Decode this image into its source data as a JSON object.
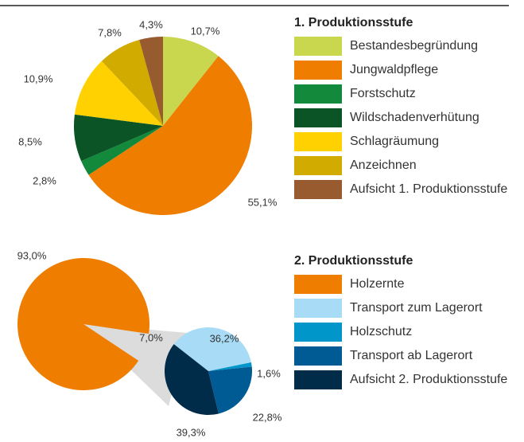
{
  "chart_data": [
    {
      "type": "pie",
      "title": "1. Produktionsstufe",
      "categories": [
        "Bestandesbegründung",
        "Jungwaldpflege",
        "Forstschutz",
        "Wildschadenverhütung",
        "Schlagräumung",
        "Anzeichnen",
        "Aufsicht 1. Produk­tionsstufe"
      ],
      "values": [
        10.7,
        55.1,
        2.8,
        8.5,
        10.9,
        7.8,
        4.3
      ],
      "value_labels": [
        "10,7%",
        "55,1%",
        "2,8%",
        "8,5%",
        "10,9%",
        "7,8%",
        "4,3%"
      ],
      "colors": [
        "#c9d74f",
        "#ef7d00",
        "#12893b",
        "#0b5426",
        "#ffd100",
        "#d2ab00",
        "#985a2f"
      ]
    },
    {
      "type": "pie-of-pie",
      "title": "2. Produktionsstufe",
      "categories": [
        "Holzernte",
        "Transport zum Lagerort",
        "Holzschutz",
        "Transport ab Lagerort",
        "Aufsicht 2. Produk­tionsstufe"
      ],
      "colors": [
        "#ef7d00",
        "#a8dbf5",
        "#0096c9",
        "#005b94",
        "#002c49"
      ],
      "main_values": [
        93.0,
        7.0
      ],
      "main_value_labels": [
        "93,0%",
        "7,0%"
      ],
      "sub_values": [
        36.2,
        1.6,
        22.8,
        39.3
      ],
      "sub_value_labels": [
        "36,2%",
        "1,6%",
        "22,8%",
        "39,3%"
      ]
    }
  ]
}
